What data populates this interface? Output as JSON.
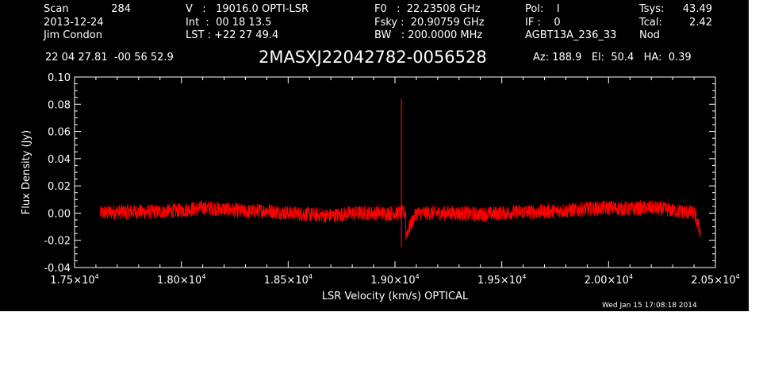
{
  "header": {
    "col1": [
      {
        "label": "Scan",
        "value": "284"
      },
      {
        "label": "2013-12-24",
        "value": ""
      },
      {
        "label": "Jim Condon",
        "value": ""
      }
    ],
    "col2": [
      "V   :   19016.0 OPTI-LSR",
      "Int  :  00 18 13.5",
      "LST : +22 27 49.4"
    ],
    "col3": [
      "F0   :  22.23508 GHz",
      "Fsky :  20.90759 GHz",
      "BW   : 200.0000 MHz"
    ],
    "col4": [
      "Pol:    I",
      "IF :    0",
      "AGBT13A_236_33"
    ],
    "col5": [
      {
        "label": "Tsys:",
        "value": "43.49"
      },
      {
        "label": "Tcal:",
        "value": "2.42"
      },
      {
        "label": "Nod",
        "value": ""
      }
    ],
    "coords": "22 04 27.81  -00 56 52.9",
    "source": "2MASXJ22042782-0056528",
    "az_el_ha": "Az: 188.9   El:  50.4   HA:  0.39",
    "timestamp": "Wed Jan 15 17:08:18 2014"
  },
  "chart_data": {
    "type": "line",
    "title": "",
    "xlabel": "LSR Velocity (km/s) OPTICAL",
    "ylabel": "Flux Density (Jy)",
    "xlim": [
      17500,
      20500
    ],
    "ylim": [
      -0.04,
      0.1
    ],
    "x_tick_labels": [
      {
        "value": 17500,
        "mantissa": "1.75×10",
        "exp": "4"
      },
      {
        "value": 18000,
        "mantissa": "1.80×10",
        "exp": "4"
      },
      {
        "value": 18500,
        "mantissa": "1.85×10",
        "exp": "4"
      },
      {
        "value": 19000,
        "mantissa": "1.90×10",
        "exp": "4"
      },
      {
        "value": 19500,
        "mantissa": "1.95×10",
        "exp": "4"
      },
      {
        "value": 20000,
        "mantissa": "2.00×10",
        "exp": "4"
      },
      {
        "value": 20500,
        "mantissa": "2.05×10",
        "exp": "4"
      }
    ],
    "y_tick_labels": [
      {
        "value": -0.04,
        "label": "-0.04"
      },
      {
        "value": -0.02,
        "label": "-0.02"
      },
      {
        "value": 0.0,
        "label": "0.00"
      },
      {
        "value": 0.02,
        "label": "0.02"
      },
      {
        "value": 0.04,
        "label": "0.04"
      },
      {
        "value": 0.06,
        "label": "0.06"
      },
      {
        "value": 0.08,
        "label": "0.08"
      },
      {
        "value": 0.1,
        "label": "0.10"
      }
    ],
    "grid": false,
    "series_color": "#ff0000",
    "series": [
      {
        "x": [
          17620,
          17700,
          17800,
          17900,
          18000,
          18100,
          18200,
          18300,
          18400,
          18500,
          18600,
          18700,
          18800,
          18900,
          19000,
          19022,
          19030,
          19038,
          19100,
          19200,
          19300,
          19400,
          19500,
          19600,
          19700,
          19800,
          19900,
          20000,
          20100,
          20200,
          20300,
          20400,
          20430
        ],
        "y": [
          0.0,
          0.001,
          0.001,
          0.001,
          0.002,
          0.004,
          0.003,
          0.001,
          0.002,
          0.0,
          -0.001,
          -0.002,
          0.0,
          0.0,
          0.0,
          0.0,
          0.084,
          -0.02,
          0.0,
          0.0,
          0.0,
          -0.001,
          0.0,
          0.001,
          0.001,
          0.002,
          0.003,
          0.004,
          0.003,
          0.004,
          0.002,
          0.0,
          -0.014
        ]
      }
    ]
  }
}
